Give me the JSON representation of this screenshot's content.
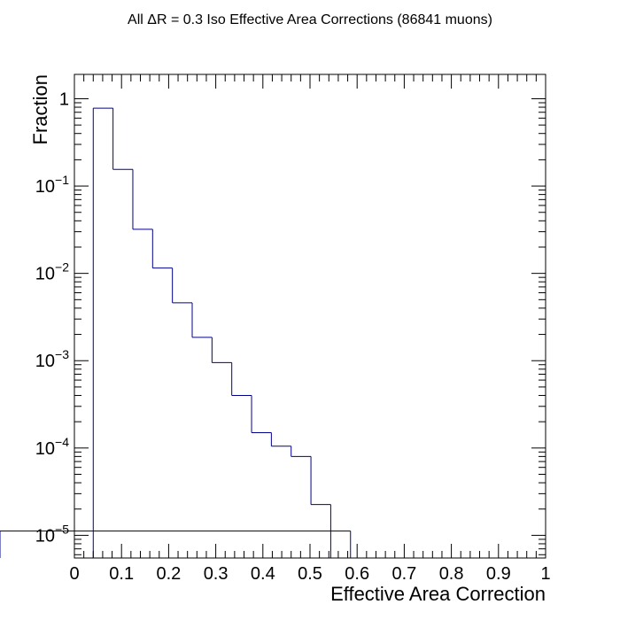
{
  "chart_data": {
    "type": "bar",
    "title": "All ΔR = 0.3 Iso Effective Area Corrections (86841 muons)",
    "xlabel": "Effective Area Correction",
    "ylabel": "Fraction",
    "ylog": true,
    "xlim": [
      0,
      1
    ],
    "ylim": [
      5.5e-06,
      1.9
    ],
    "grid": false,
    "x_ticks": [
      {
        "value": 0,
        "label": "0"
      },
      {
        "value": 0.1,
        "label": "0.1"
      },
      {
        "value": 0.2,
        "label": "0.2"
      },
      {
        "value": 0.3,
        "label": "0.3"
      },
      {
        "value": 0.4,
        "label": "0.4"
      },
      {
        "value": 0.5,
        "label": "0.5"
      },
      {
        "value": 0.6,
        "label": "0.6"
      },
      {
        "value": 0.7,
        "label": "0.7"
      },
      {
        "value": 0.8,
        "label": "0.8"
      },
      {
        "value": 0.9,
        "label": "0.9"
      },
      {
        "value": 1,
        "label": "1"
      }
    ],
    "y_ticks": [
      {
        "value": 1,
        "base": "1",
        "exponent": ""
      },
      {
        "value": 0.1,
        "base": "10",
        "exponent": "−1"
      },
      {
        "value": 0.01,
        "base": "10",
        "exponent": "−2"
      },
      {
        "value": 0.001,
        "base": "10",
        "exponent": "−3"
      },
      {
        "value": 0.0001,
        "base": "10",
        "exponent": "−4"
      },
      {
        "value": 1e-05,
        "base": "10",
        "exponent": "−5"
      }
    ],
    "bin_edges": [
      0.04,
      0.082,
      0.124,
      0.166,
      0.208,
      0.25,
      0.292,
      0.334,
      0.376,
      0.418,
      0.46,
      0.502,
      0.544,
      0.586
    ],
    "series": [
      {
        "values": [
          0.78,
          0.155,
          0.032,
          0.0115,
          0.0046,
          0.00185,
          0.00095,
          0.0004,
          0.00015,
          0.000105,
          8e-05,
          2.25e-05,
          0,
          1.12e-05
        ]
      }
    ],
    "colors": {
      "line": "#00008b",
      "frame": "#000000"
    }
  }
}
